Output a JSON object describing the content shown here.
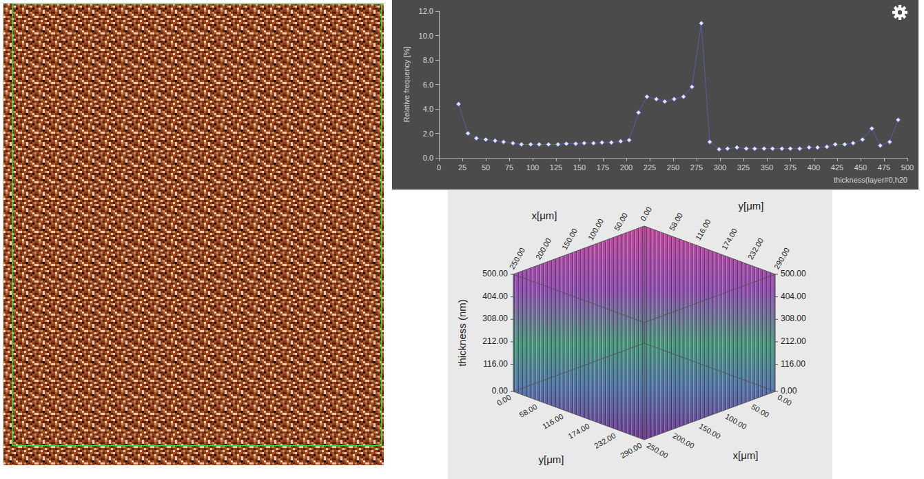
{
  "chart_data": [
    {
      "type": "line",
      "x_label": "thickness(layer#0,h20",
      "y_label": "Relative frequency [%]",
      "x": [
        21,
        31,
        40,
        50,
        60,
        69,
        79,
        88,
        98,
        107,
        117,
        127,
        136,
        146,
        155,
        165,
        174,
        184,
        194,
        203,
        213,
        222,
        232,
        241,
        251,
        261,
        270,
        280,
        289,
        299,
        308,
        318,
        328,
        337,
        347,
        356,
        366,
        375,
        385,
        395,
        404,
        414,
        423,
        433,
        442,
        452,
        462,
        471,
        481,
        490
      ],
      "values": [
        4.4,
        2.0,
        1.6,
        1.5,
        1.4,
        1.3,
        1.2,
        1.1,
        1.1,
        1.1,
        1.1,
        1.1,
        1.15,
        1.15,
        1.2,
        1.2,
        1.25,
        1.25,
        1.35,
        1.45,
        3.7,
        5.0,
        4.8,
        4.6,
        4.8,
        5.0,
        5.8,
        11.0,
        1.3,
        0.7,
        0.75,
        0.85,
        0.75,
        0.75,
        0.75,
        0.75,
        0.75,
        0.75,
        0.75,
        0.85,
        0.85,
        0.9,
        1.1,
        1.1,
        1.2,
        1.5,
        2.4,
        1.0,
        1.3,
        3.1
      ],
      "color": "#5c5ca8",
      "marker": "diamond",
      "xlim": [
        0,
        500
      ],
      "xticks": [
        0,
        25,
        50,
        75,
        100,
        125,
        150,
        175,
        200,
        225,
        250,
        275,
        300,
        325,
        350,
        375,
        400,
        425,
        450,
        475,
        500
      ],
      "ylim": [
        0,
        12
      ],
      "yticks": [
        {
          "value": 0,
          "label": "0.0"
        },
        {
          "value": 2,
          "label": "2.0"
        },
        {
          "value": 4,
          "label": "4.0"
        },
        {
          "value": 6,
          "label": "6.0"
        },
        {
          "value": 8,
          "label": "8.0"
        },
        {
          "value": 10,
          "label": "10.0"
        },
        {
          "value": 12,
          "label": "12.0"
        }
      ],
      "grid": false
    },
    {
      "type": "surface3d",
      "x_label": "x[μm]",
      "y_label": "y[μm]",
      "z_label": "thickness (nm)",
      "xlim": [
        0,
        250
      ],
      "xticks": [
        {
          "value": 0,
          "label": "0.00"
        },
        {
          "value": 50,
          "label": "50.00"
        },
        {
          "value": 100,
          "label": "100.00"
        },
        {
          "value": 150,
          "label": "150.00"
        },
        {
          "value": 200,
          "label": "200.00"
        },
        {
          "value": 250,
          "label": "250.00"
        }
      ],
      "ylim": [
        0,
        290
      ],
      "yticks": [
        {
          "value": 0,
          "label": "0.00"
        },
        {
          "value": 58,
          "label": "58.00"
        },
        {
          "value": 116,
          "label": "116.00"
        },
        {
          "value": 174,
          "label": "174.00"
        },
        {
          "value": 232,
          "label": "232.00"
        },
        {
          "value": 290,
          "label": "290.00"
        }
      ],
      "zlim": [
        0,
        500
      ],
      "zticks": [
        {
          "value": 0,
          "label": "0.00"
        },
        {
          "value": 116,
          "label": "116.00"
        },
        {
          "value": 212,
          "label": "212.00"
        },
        {
          "value": 308,
          "label": "308.00"
        },
        {
          "value": 404,
          "label": "404.00"
        },
        {
          "value": 500,
          "label": "500.00"
        }
      ]
    }
  ],
  "thickness_map": {
    "type": "heatmap",
    "colors": [
      "#8a3a14",
      "#a8542a",
      "#5a2008",
      "#ecd0ae",
      "#000000",
      "#c98c5c"
    ]
  }
}
